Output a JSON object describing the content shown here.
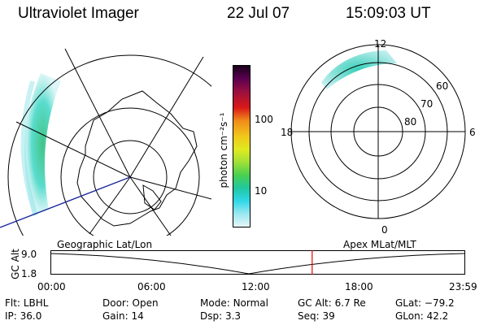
{
  "header": {
    "instrument": "Ultraviolet Imager",
    "date": "22 Jul 07",
    "time": "15:09:03 UT"
  },
  "colorbar": {
    "unit_label": "photon cm⁻²s⁻¹",
    "tick_labels": [
      "100",
      "10"
    ],
    "scale": "log"
  },
  "polar_plot": {
    "mlt_labels": [
      "12",
      "18",
      "6",
      "0"
    ],
    "mlat_labels": [
      "60",
      "70",
      "80"
    ]
  },
  "timeline": {
    "left_title": "Geographic Lat/Lon",
    "right_title": "Apex MLat/MLT",
    "axis_label": "GC Alt",
    "y_ticks": [
      "9.0",
      "1.8"
    ],
    "x_ticks": [
      "00:00",
      "06:00",
      "12:00",
      "18:00",
      "23:59"
    ],
    "marker_color": "#e00000",
    "marker_time_hours": 15.15
  },
  "status": {
    "row1": [
      {
        "label": "Flt:",
        "value": "LBHL"
      },
      {
        "label": "Door:",
        "value": "Open"
      },
      {
        "label": "Mode:",
        "value": "Normal"
      },
      {
        "label": "GC Alt:",
        "value": "6.7 Re"
      },
      {
        "label": "GLat:",
        "value": "−79.2"
      }
    ],
    "row2": [
      {
        "label": "IP:",
        "value": "36.0"
      },
      {
        "label": "Gain:",
        "value": "14"
      },
      {
        "label": "Dsp:",
        "value": "3.3"
      },
      {
        "label": "Seq:",
        "value": "39"
      },
      {
        "label": "GLon:",
        "value": "42.2"
      }
    ]
  }
}
